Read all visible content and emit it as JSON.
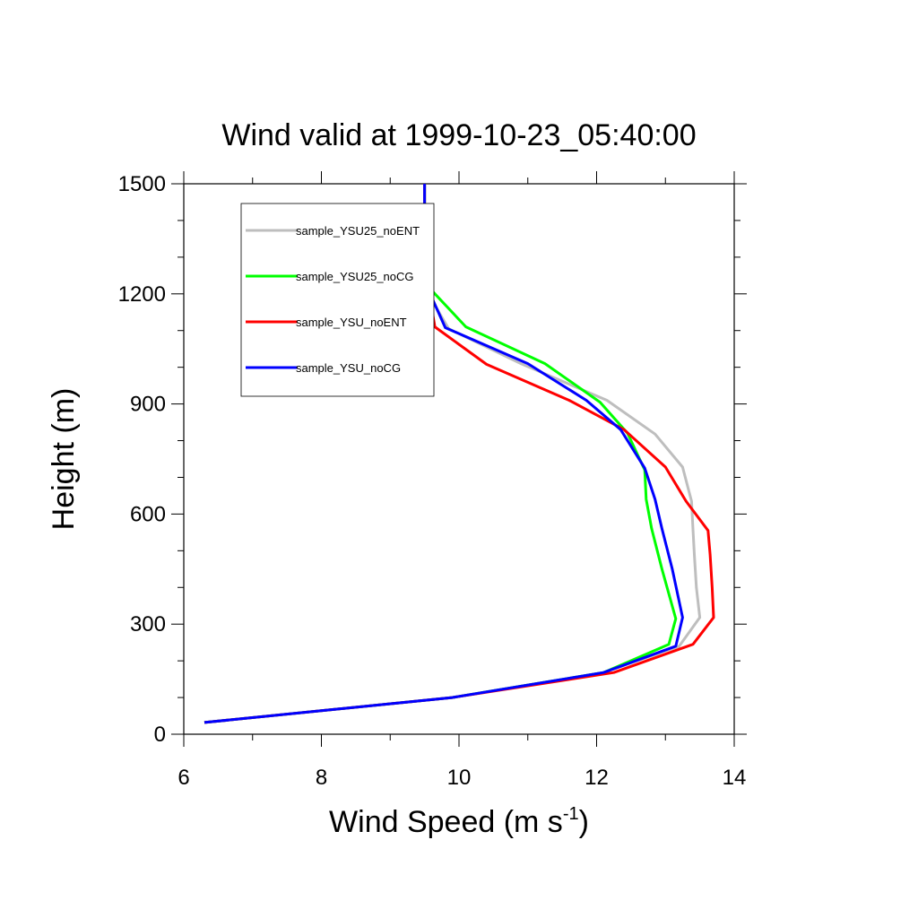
{
  "chart_data": {
    "type": "line",
    "title": "Wind valid at 1999-10-23_05:40:00",
    "xlabel": "Wind Speed (m s",
    "xlabel_superscript": "-1",
    "xlabel_suffix": ")",
    "ylabel": "Height (m)",
    "xlim": [
      6,
      14
    ],
    "ylim": [
      0,
      1500
    ],
    "x_ticks": [
      6,
      8,
      10,
      12,
      14
    ],
    "y_ticks": [
      0,
      300,
      600,
      900,
      1200,
      1500
    ],
    "grid": false,
    "legend_position": "top-left",
    "series": [
      {
        "name": "sample_YSU25_noENT",
        "color": "#bebebe",
        "points": [
          [
            6.3,
            32
          ],
          [
            9.9,
            100
          ],
          [
            12.1,
            168
          ],
          [
            13.2,
            240
          ],
          [
            13.5,
            318
          ],
          [
            13.45,
            400
          ],
          [
            13.42,
            490
          ],
          [
            13.4,
            558
          ],
          [
            13.38,
            635
          ],
          [
            13.25,
            728
          ],
          [
            12.85,
            818
          ],
          [
            12.15,
            910
          ],
          [
            10.9,
            1010
          ],
          [
            9.85,
            1105
          ],
          [
            9.55,
            1200
          ],
          [
            9.5,
            1300
          ],
          [
            9.5,
            1400
          ],
          [
            9.5,
            1500
          ]
        ]
      },
      {
        "name": "sample_YSU25_noCG",
        "color": "#00ff00",
        "points": [
          [
            6.3,
            32
          ],
          [
            9.9,
            100
          ],
          [
            12.1,
            168
          ],
          [
            13.05,
            245
          ],
          [
            13.15,
            315
          ],
          [
            12.95,
            450
          ],
          [
            12.8,
            560
          ],
          [
            12.72,
            640
          ],
          [
            12.7,
            720
          ],
          [
            12.45,
            820
          ],
          [
            12.05,
            905
          ],
          [
            11.25,
            1010
          ],
          [
            10.1,
            1110
          ],
          [
            9.6,
            1210
          ],
          [
            9.5,
            1300
          ],
          [
            9.5,
            1400
          ],
          [
            9.5,
            1500
          ]
        ]
      },
      {
        "name": "sample_YSU_noENT",
        "color": "#ff0000",
        "points": [
          [
            6.3,
            32
          ],
          [
            9.9,
            100
          ],
          [
            12.25,
            168
          ],
          [
            13.4,
            245
          ],
          [
            13.7,
            318
          ],
          [
            13.68,
            400
          ],
          [
            13.65,
            490
          ],
          [
            13.62,
            555
          ],
          [
            13.3,
            635
          ],
          [
            13.0,
            728
          ],
          [
            12.4,
            830
          ],
          [
            11.6,
            910
          ],
          [
            10.4,
            1008
          ],
          [
            9.65,
            1110
          ],
          [
            9.55,
            1220
          ],
          [
            9.5,
            1300
          ],
          [
            9.5,
            1400
          ],
          [
            9.5,
            1500
          ]
        ]
      },
      {
        "name": "sample_YSU_noCG",
        "color": "#0000ff",
        "points": [
          [
            6.3,
            32
          ],
          [
            9.9,
            100
          ],
          [
            12.1,
            168
          ],
          [
            13.15,
            240
          ],
          [
            13.25,
            318
          ],
          [
            13.1,
            450
          ],
          [
            12.95,
            560
          ],
          [
            12.85,
            640
          ],
          [
            12.7,
            725
          ],
          [
            12.35,
            830
          ],
          [
            11.85,
            910
          ],
          [
            11.0,
            1010
          ],
          [
            9.8,
            1108
          ],
          [
            9.58,
            1200
          ],
          [
            9.5,
            1300
          ],
          [
            9.5,
            1400
          ],
          [
            9.5,
            1500
          ]
        ]
      }
    ]
  }
}
